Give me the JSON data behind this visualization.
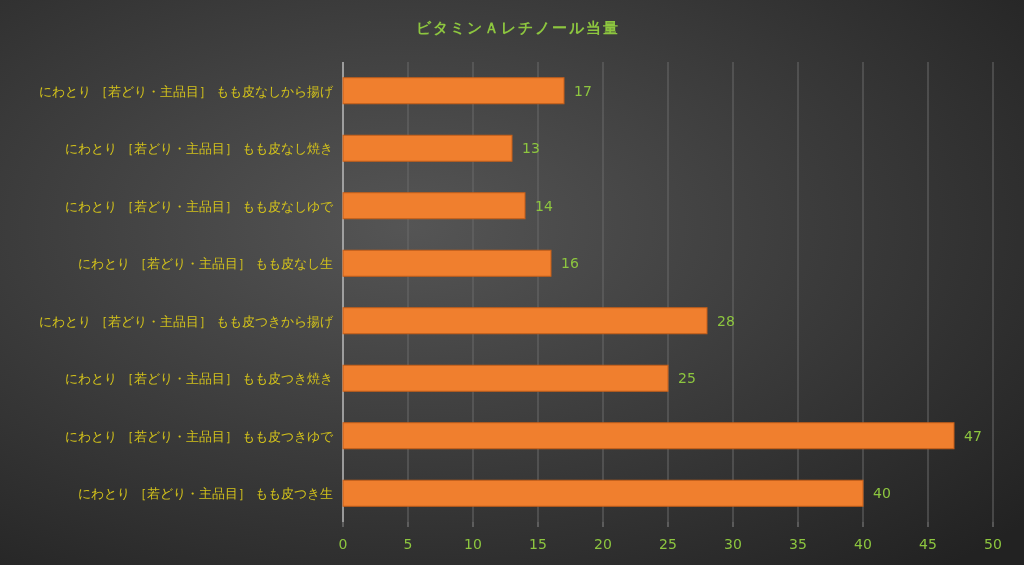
{
  "chart_data": {
    "type": "bar",
    "orientation": "horizontal",
    "title": "ビタミンＡレチノール当量",
    "categories": [
      "にわとり ［若どり・主品目］ もも皮なしから揚げ",
      "にわとり ［若どり・主品目］ もも皮なし焼き",
      "にわとり ［若どり・主品目］ もも皮なしゆで",
      "にわとり ［若どり・主品目］ もも皮なし生",
      "にわとり ［若どり・主品目］ もも皮つきから揚げ",
      "にわとり ［若どり・主品目］ もも皮つき焼き",
      "にわとり ［若どり・主品目］ もも皮つきゆで",
      "にわとり ［若どり・主品目］ もも皮つき生"
    ],
    "values": [
      17,
      13,
      14,
      16,
      28,
      25,
      47,
      40
    ],
    "color": "#f07f2e",
    "xlim": [
      0,
      50
    ],
    "xticks": [
      0,
      5,
      10,
      15,
      20,
      25,
      30,
      35,
      40,
      45,
      50
    ],
    "grid": "x",
    "data_labels": true
  }
}
